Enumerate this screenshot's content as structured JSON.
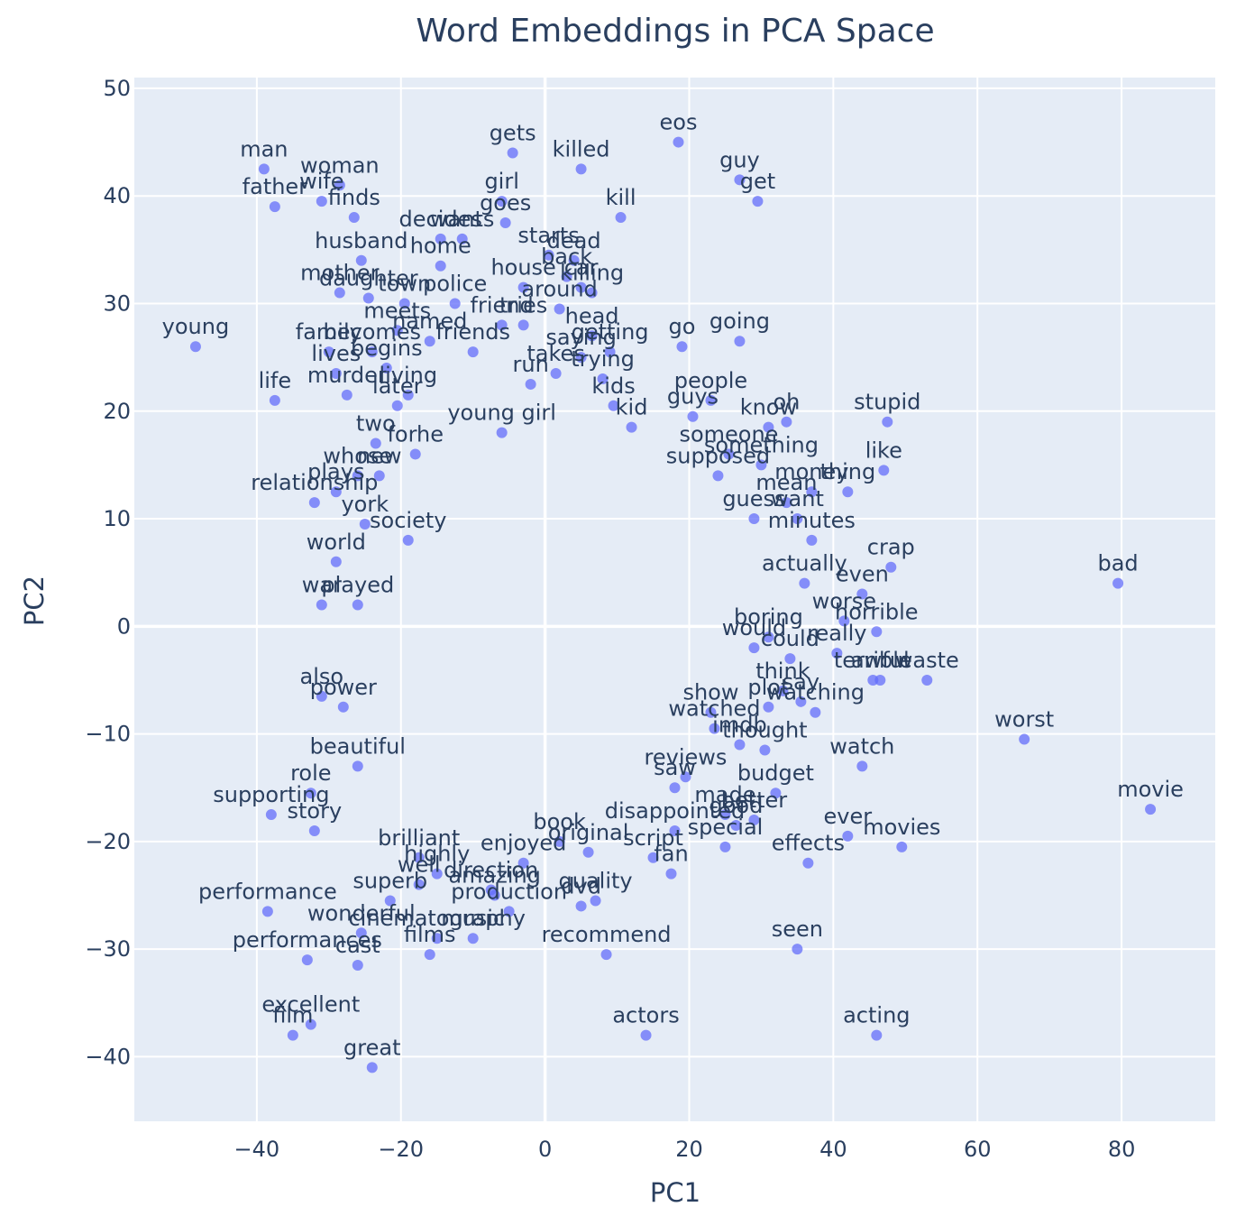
{
  "chart_data": {
    "type": "scatter",
    "title": "Word Embeddings in PCA Space",
    "xlabel": "PC1",
    "ylabel": "PC2",
    "xlim": [
      -57,
      93
    ],
    "ylim": [
      -46,
      51
    ],
    "x_ticks": [
      -40,
      -20,
      0,
      20,
      40,
      60,
      80
    ],
    "y_ticks": [
      -40,
      -30,
      -20,
      -10,
      0,
      10,
      20,
      30,
      40,
      50
    ],
    "x_tick_labels": [
      "−40",
      "−20",
      "0",
      "20",
      "40",
      "60",
      "80"
    ],
    "y_tick_labels": [
      "−40",
      "−30",
      "−20",
      "−10",
      "0",
      "10",
      "20",
      "30",
      "40",
      "50"
    ],
    "grid": true,
    "marker_color": "#636efa",
    "plot_bg": "#e5ecf6",
    "points": [
      {
        "label": "man",
        "x": -39,
        "y": 42.5
      },
      {
        "label": "father",
        "x": -37.5,
        "y": 39
      },
      {
        "label": "woman",
        "x": -28.5,
        "y": 41
      },
      {
        "label": "wife",
        "x": -31,
        "y": 39.5
      },
      {
        "label": "finds",
        "x": -26.5,
        "y": 38
      },
      {
        "label": "husband",
        "x": -25.5,
        "y": 34
      },
      {
        "label": "mother",
        "x": -28.5,
        "y": 31
      },
      {
        "label": "daughter",
        "x": -24.5,
        "y": 30.5
      },
      {
        "label": "town",
        "x": -19.5,
        "y": 30
      },
      {
        "label": "meets",
        "x": -20.5,
        "y": 27.5
      },
      {
        "label": "young",
        "x": -48.5,
        "y": 26
      },
      {
        "label": "life",
        "x": -37.5,
        "y": 21
      },
      {
        "label": "lives",
        "x": -29,
        "y": 23.5
      },
      {
        "label": "family",
        "x": -30,
        "y": 25.5
      },
      {
        "label": "becomes",
        "x": -24,
        "y": 25.5
      },
      {
        "label": "begins",
        "x": -22,
        "y": 24
      },
      {
        "label": "murder",
        "x": -27.5,
        "y": 21.5
      },
      {
        "label": "later",
        "x": -20.5,
        "y": 20.5
      },
      {
        "label": "two",
        "x": -23.5,
        "y": 17
      },
      {
        "label": "living",
        "x": -19,
        "y": 21.5
      },
      {
        "label": "named",
        "x": -16,
        "y": 26.5
      },
      {
        "label": "friends",
        "x": -10,
        "y": 25.5
      },
      {
        "label": "decides",
        "x": -14.5,
        "y": 36
      },
      {
        "label": "wants",
        "x": -11.5,
        "y": 36
      },
      {
        "label": "home",
        "x": -14.5,
        "y": 33.5
      },
      {
        "label": "police",
        "x": -12.5,
        "y": 30
      },
      {
        "label": "friend",
        "x": -6,
        "y": 28
      },
      {
        "label": "tries",
        "x": -3,
        "y": 28
      },
      {
        "label": "gets",
        "x": -4.5,
        "y": 44
      },
      {
        "label": "girl",
        "x": -6,
        "y": 39.5
      },
      {
        "label": "goes",
        "x": -5.5,
        "y": 37.5
      },
      {
        "label": "killed",
        "x": 5,
        "y": 42.5
      },
      {
        "label": "kill",
        "x": 10.5,
        "y": 38
      },
      {
        "label": "starts",
        "x": 0.5,
        "y": 34.5
      },
      {
        "label": "dead",
        "x": 4,
        "y": 34
      },
      {
        "label": "back",
        "x": 3,
        "y": 32.5
      },
      {
        "label": "house",
        "x": -3,
        "y": 31.5
      },
      {
        "label": "car",
        "x": 5,
        "y": 31.5
      },
      {
        "label": "killing",
        "x": 6.5,
        "y": 31
      },
      {
        "label": "around",
        "x": 2,
        "y": 29.5
      },
      {
        "label": "head",
        "x": 6.5,
        "y": 27
      },
      {
        "label": "getting",
        "x": 9,
        "y": 25.5
      },
      {
        "label": "saying",
        "x": 5,
        "y": 25
      },
      {
        "label": "guys",
        "x": 20.5,
        "y": 19.5
      },
      {
        "label": "eos",
        "x": 18.5,
        "y": 45
      },
      {
        "label": "guy",
        "x": 27,
        "y": 41.5
      },
      {
        "label": "get",
        "x": 29.5,
        "y": 39.5
      },
      {
        "label": "go",
        "x": 19,
        "y": 26
      },
      {
        "label": "going",
        "x": 27,
        "y": 26.5
      },
      {
        "label": "people",
        "x": 23,
        "y": 21
      },
      {
        "label": "oh",
        "x": 33.5,
        "y": 19
      },
      {
        "label": "know",
        "x": 31,
        "y": 18.5
      },
      {
        "label": "stupid",
        "x": 47.5,
        "y": 19
      },
      {
        "label": "like",
        "x": 47,
        "y": 14.5
      },
      {
        "label": "thing",
        "x": 42,
        "y": 12.5
      },
      {
        "label": "money",
        "x": 37,
        "y": 12.5
      },
      {
        "label": "something",
        "x": 30,
        "y": 15
      },
      {
        "label": "someone",
        "x": 25.5,
        "y": 16
      },
      {
        "label": "supposed",
        "x": 24,
        "y": 14
      },
      {
        "label": "mean",
        "x": 33.5,
        "y": 11.5
      },
      {
        "label": "want",
        "x": 35,
        "y": 10
      },
      {
        "label": "minutes",
        "x": 37,
        "y": 8
      },
      {
        "label": "guess",
        "x": 29,
        "y": 10
      },
      {
        "label": "crap",
        "x": 48,
        "y": 5.5
      },
      {
        "label": "actually",
        "x": 36,
        "y": 4
      },
      {
        "label": "even",
        "x": 44,
        "y": 3
      },
      {
        "label": "worse",
        "x": 41.5,
        "y": 0.5
      },
      {
        "label": "horrible",
        "x": 46,
        "y": -0.5
      },
      {
        "label": "really",
        "x": 40.5,
        "y": -2.5
      },
      {
        "label": "terrible",
        "x": 45.5,
        "y": -5
      },
      {
        "label": "awful",
        "x": 46.5,
        "y": -5
      },
      {
        "label": "waste",
        "x": 53,
        "y": -5
      },
      {
        "label": "bad",
        "x": 79.5,
        "y": 4
      },
      {
        "label": "worst",
        "x": 66.5,
        "y": -10.5
      },
      {
        "label": "movie",
        "x": 84,
        "y": -17
      },
      {
        "label": "watching",
        "x": 37.5,
        "y": -8
      },
      {
        "label": "watch",
        "x": 44,
        "y": -13
      },
      {
        "label": "say",
        "x": 35.5,
        "y": -7
      },
      {
        "label": "think",
        "x": 33,
        "y": -6
      },
      {
        "label": "could",
        "x": 34,
        "y": -3
      },
      {
        "label": "would",
        "x": 29,
        "y": -2
      },
      {
        "label": "boring",
        "x": 31,
        "y": -1
      },
      {
        "label": "thought",
        "x": 30.5,
        "y": -11.5
      },
      {
        "label": "budget",
        "x": 32,
        "y": -15.5
      },
      {
        "label": "better",
        "x": 29,
        "y": -18
      },
      {
        "label": "ever",
        "x": 42,
        "y": -19.5
      },
      {
        "label": "movies",
        "x": 49.5,
        "y": -20.5
      },
      {
        "label": "effects",
        "x": 36.5,
        "y": -22
      },
      {
        "label": "seen",
        "x": 35,
        "y": -30
      },
      {
        "label": "acting",
        "x": 46,
        "y": -38
      },
      {
        "label": "actors",
        "x": 14,
        "y": -38
      },
      {
        "label": "recommend",
        "x": 8.5,
        "y": -30.5
      },
      {
        "label": "plot",
        "x": 31,
        "y": -7.5
      },
      {
        "label": "show",
        "x": 23,
        "y": -8
      },
      {
        "label": "watched",
        "x": 23.5,
        "y": -9.5
      },
      {
        "label": "imdb",
        "x": 27,
        "y": -11
      },
      {
        "label": "reviews",
        "x": 19.5,
        "y": -14
      },
      {
        "label": "saw",
        "x": 18,
        "y": -15
      },
      {
        "label": "made",
        "x": 25,
        "y": -17.5
      },
      {
        "label": "good",
        "x": 26.5,
        "y": -18.5
      },
      {
        "label": "special",
        "x": 25,
        "y": -20.5
      },
      {
        "label": "disappointed",
        "x": 18,
        "y": -19
      },
      {
        "label": "script",
        "x": 15,
        "y": -21.5
      },
      {
        "label": "fan",
        "x": 17.5,
        "y": -23
      },
      {
        "label": "quality",
        "x": 7,
        "y": -25.5
      },
      {
        "label": "dvd",
        "x": 5,
        "y": -26
      },
      {
        "label": "production",
        "x": -5,
        "y": -26.5
      },
      {
        "label": "amazing",
        "x": -7,
        "y": -25
      },
      {
        "label": "direction",
        "x": -7.5,
        "y": -24.5
      },
      {
        "label": "music",
        "x": -10,
        "y": -29
      },
      {
        "label": "cinematography",
        "x": -15,
        "y": -29
      },
      {
        "label": "films",
        "x": -16,
        "y": -30.5
      },
      {
        "label": "superb",
        "x": -21.5,
        "y": -25.5
      },
      {
        "label": "wonderful",
        "x": -25.5,
        "y": -28.5
      },
      {
        "label": "performance",
        "x": -38.5,
        "y": -26.5
      },
      {
        "label": "performances",
        "x": -33,
        "y": -31
      },
      {
        "label": "cast",
        "x": -26,
        "y": -31.5
      },
      {
        "label": "excellent",
        "x": -32.5,
        "y": -37
      },
      {
        "label": "film",
        "x": -35,
        "y": -38
      },
      {
        "label": "great",
        "x": -24,
        "y": -41
      },
      {
        "label": "role",
        "x": -32.5,
        "y": -15.5
      },
      {
        "label": "supporting",
        "x": -38,
        "y": -17.5
      },
      {
        "label": "beautiful",
        "x": -26,
        "y": -13
      },
      {
        "label": "story",
        "x": -32,
        "y": -19
      },
      {
        "label": "brilliant",
        "x": -17.5,
        "y": -21.5
      },
      {
        "label": "well",
        "x": -17.5,
        "y": -24
      },
      {
        "label": "highly",
        "x": -15,
        "y": -23
      },
      {
        "label": "enjoyed",
        "x": -3,
        "y": -22
      },
      {
        "label": "original",
        "x": 6,
        "y": -21
      },
      {
        "label": "book",
        "x": 2,
        "y": -20
      },
      {
        "label": "also",
        "x": -31,
        "y": -6.5
      },
      {
        "label": "power",
        "x": -28,
        "y": -7.5
      },
      {
        "label": "war",
        "x": -31,
        "y": 2
      },
      {
        "label": "played",
        "x": -26,
        "y": 2
      },
      {
        "label": "world",
        "x": -29,
        "y": 6
      },
      {
        "label": "york",
        "x": -25,
        "y": 9.5
      },
      {
        "label": "society",
        "x": -19,
        "y": 8
      },
      {
        "label": "relationship",
        "x": -32,
        "y": 11.5
      },
      {
        "label": "plays",
        "x": -29,
        "y": 12.5
      },
      {
        "label": "whose",
        "x": -26,
        "y": 14
      },
      {
        "label": "new",
        "x": -23,
        "y": 14
      },
      {
        "label": "forhe",
        "x": -18,
        "y": 16
      },
      {
        "label": "young girl",
        "x": -6,
        "y": 18
      },
      {
        "label": "kid",
        "x": 12,
        "y": 18.5
      },
      {
        "label": "kids",
        "x": 9.5,
        "y": 20.5
      },
      {
        "label": "trying",
        "x": 8,
        "y": 23
      },
      {
        "label": "run",
        "x": -2,
        "y": 22.5
      },
      {
        "label": "takes",
        "x": 1.5,
        "y": 23.5
      }
    ]
  }
}
